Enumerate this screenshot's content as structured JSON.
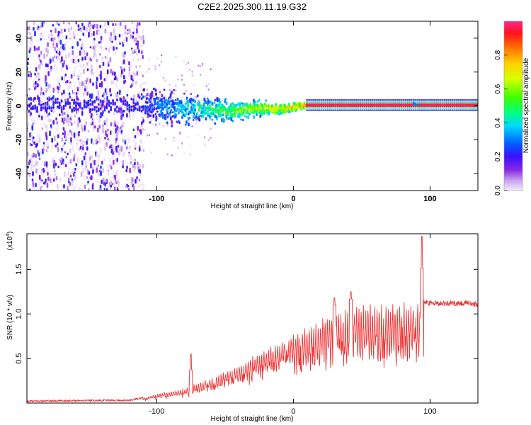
{
  "title": "C2E2.2025.300.11.19.G32",
  "chart_data": [
    {
      "type": "heatmap",
      "xlabel": "Height of straight line (km)",
      "ylabel": "Frequency (Hz)",
      "xlim": [
        -195,
        135
      ],
      "ylim": [
        -50,
        50
      ],
      "xticks": [
        -100,
        0,
        100
      ],
      "yticks": [
        -40,
        -20,
        0,
        20,
        40
      ],
      "xtick_labels": [
        "-100",
        "0",
        "100"
      ],
      "ytick_labels": [
        "-40",
        "-20",
        "0",
        "20",
        "40"
      ],
      "colorbar": {
        "label": "Normalized spectral amplitude",
        "range": [
          0,
          1
        ],
        "ticks": [
          0.0,
          0.2,
          0.4,
          0.6,
          0.8
        ],
        "tick_labels": [
          "0.0",
          "0.2",
          "0.4",
          "0.6",
          "0.8"
        ],
        "colormap": [
          "#f4ecfb",
          "#c9a2f0",
          "#8a2be2",
          "#3a10ff",
          "#0060ff",
          "#00d8ff",
          "#00ff80",
          "#40ff00",
          "#d8ff00",
          "#ffd000",
          "#ff6a00",
          "#ff1020",
          "#ff2a8a"
        ]
      },
      "description_points": {
        "noisy_region_x": [
          -195,
          -110
        ],
        "transition_region_x": [
          -110,
          10
        ],
        "stable_line_x": [
          10,
          135
        ],
        "stable_frequency_hz": 0
      }
    },
    {
      "type": "line",
      "xlabel": "Height of straight line (km)",
      "ylabel": "SNR (10 * v/v)",
      "exponent_label": "(x10",
      "exponent_power": "4",
      "exponent_close": ")",
      "xlim": [
        -195,
        135
      ],
      "ylim": [
        0,
        1.9
      ],
      "xticks": [
        -100,
        0,
        100
      ],
      "yticks": [
        0.5,
        1.0,
        1.5
      ],
      "xtick_labels": [
        "-100",
        "0",
        "100"
      ],
      "ytick_labels": [
        "0.5",
        "1.0",
        "1.5"
      ],
      "line_color": "#ee3333",
      "envelope_x": [
        -195,
        -150,
        -120,
        -110,
        -100,
        -90,
        -80,
        -70,
        -60,
        -50,
        -40,
        -30,
        -20,
        -10,
        0,
        10,
        20,
        30,
        40,
        50,
        60,
        70,
        80,
        90,
        95,
        96,
        100,
        110,
        120,
        130,
        135
      ],
      "envelope_y": [
        0.02,
        0.03,
        0.03,
        0.06,
        0.1,
        0.13,
        0.16,
        0.22,
        0.28,
        0.35,
        0.42,
        0.52,
        0.6,
        0.68,
        0.78,
        0.86,
        0.94,
        1.02,
        1.08,
        1.1,
        1.12,
        1.12,
        1.13,
        1.14,
        1.15,
        1.13,
        1.12,
        1.12,
        1.12,
        1.12,
        1.1
      ],
      "peaks": [
        {
          "x": 94,
          "y": 1.87
        },
        {
          "x": 42,
          "y": 1.25
        },
        {
          "x": 30,
          "y": 1.18
        },
        {
          "x": -75,
          "y": 0.55
        }
      ]
    }
  ]
}
